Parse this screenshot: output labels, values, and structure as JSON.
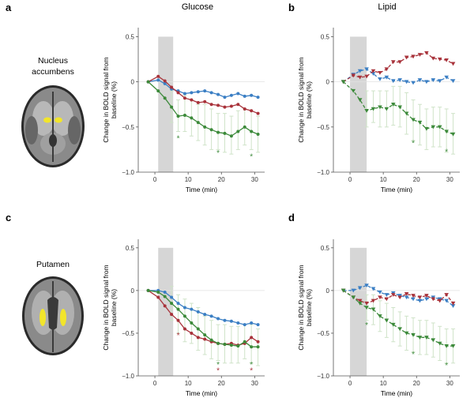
{
  "column_titles": {
    "left": "Glucose",
    "right": "Lipid"
  },
  "row_labels": {
    "top": [
      "Nucleus",
      "accumbens"
    ],
    "bottom": [
      "Putamen"
    ]
  },
  "colors": {
    "blue": "#3b7fc4",
    "red": "#a8323a",
    "green": "#3c8a3a",
    "errorbar": "#cfe3c8",
    "shade": "#d6d6d6",
    "brain_highlight": "#f2e52b"
  },
  "chart_data": [
    {
      "panel": "a",
      "type": "line",
      "line_style": "solid",
      "marker": "circle",
      "xlabel": "Time (min)",
      "ylabel": [
        "Change in BOLD signal from",
        "baseline (%)"
      ],
      "xlim": [
        -5,
        33
      ],
      "ylim": [
        -1.0,
        0.6
      ],
      "xticks": [
        0,
        10,
        20,
        30
      ],
      "yticks": [
        0.5,
        0,
        -0.5,
        -1.0
      ],
      "ytick_labels": [
        "0.5",
        "0",
        "−0.5",
        "−1.0"
      ],
      "shade_x": [
        1,
        5.5
      ],
      "series": [
        {
          "color": "blue",
          "x": [
            -2,
            1,
            3,
            5,
            7,
            9,
            11,
            13,
            15,
            17,
            19,
            21,
            23,
            25,
            27,
            29,
            31
          ],
          "y": [
            0,
            0.02,
            -0.02,
            -0.08,
            -0.1,
            -0.13,
            -0.12,
            -0.11,
            -0.1,
            -0.12,
            -0.14,
            -0.17,
            -0.15,
            -0.13,
            -0.16,
            -0.15,
            -0.17
          ]
        },
        {
          "color": "red",
          "x": [
            -2,
            1,
            3,
            5,
            7,
            9,
            11,
            13,
            15,
            17,
            19,
            21,
            23,
            25,
            27,
            29,
            31
          ],
          "y": [
            0,
            0.06,
            0.01,
            -0.06,
            -0.12,
            -0.18,
            -0.2,
            -0.23,
            -0.22,
            -0.25,
            -0.26,
            -0.28,
            -0.27,
            -0.25,
            -0.3,
            -0.32,
            -0.35
          ]
        },
        {
          "color": "green",
          "x": [
            -2,
            1,
            3,
            5,
            7,
            9,
            11,
            13,
            15,
            17,
            19,
            21,
            23,
            25,
            27,
            29,
            31
          ],
          "y": [
            0,
            -0.1,
            -0.18,
            -0.28,
            -0.38,
            -0.37,
            -0.4,
            -0.45,
            -0.5,
            -0.53,
            -0.56,
            -0.57,
            -0.6,
            -0.55,
            -0.5,
            -0.55,
            -0.58
          ]
        }
      ],
      "errorbars": [
        {
          "x": 5,
          "low": -0.45,
          "high": -0.1
        },
        {
          "x": 7,
          "low": -0.55,
          "high": -0.2
        },
        {
          "x": 9,
          "low": -0.55,
          "high": -0.15
        },
        {
          "x": 11,
          "low": -0.6,
          "high": -0.2
        },
        {
          "x": 13,
          "low": -0.65,
          "high": -0.25
        },
        {
          "x": 15,
          "low": -0.7,
          "high": -0.25
        },
        {
          "x": 17,
          "low": -0.75,
          "high": -0.3
        },
        {
          "x": 19,
          "low": -0.75,
          "high": -0.35
        },
        {
          "x": 21,
          "low": -0.78,
          "high": -0.35
        },
        {
          "x": 23,
          "low": -0.8,
          "high": -0.38
        },
        {
          "x": 25,
          "low": -0.75,
          "high": -0.32
        },
        {
          "x": 27,
          "low": -0.7,
          "high": -0.3
        },
        {
          "x": 29,
          "low": -0.75,
          "high": -0.32
        },
        {
          "x": 31,
          "low": -0.78,
          "high": -0.38
        }
      ],
      "significance": [
        {
          "x": 7,
          "y": -0.62,
          "color": "green",
          "text": "*"
        },
        {
          "x": 19,
          "y": -0.78,
          "color": "green",
          "text": "*"
        },
        {
          "x": 29,
          "y": -0.82,
          "color": "green",
          "text": "*"
        }
      ]
    },
    {
      "panel": "b",
      "type": "line",
      "line_style": "dashed",
      "marker": "triangle-down",
      "xlabel": "Time (min)",
      "ylabel": [
        "Change in BOLD signal from",
        "baseline (%)"
      ],
      "xlim": [
        -5,
        33
      ],
      "ylim": [
        -1.0,
        0.6
      ],
      "xticks": [
        0,
        10,
        20,
        30
      ],
      "yticks": [
        0.5,
        0,
        -0.5,
        -1.0
      ],
      "ytick_labels": [
        "0.5",
        "0",
        "−0.5",
        "−1.0"
      ],
      "shade_x": [
        0,
        5
      ],
      "series": [
        {
          "color": "blue",
          "x": [
            -2,
            1,
            3,
            5,
            7,
            9,
            11,
            13,
            15,
            17,
            19,
            21,
            23,
            25,
            27,
            29,
            31
          ],
          "y": [
            0,
            0.08,
            0.12,
            0.14,
            0.09,
            0.03,
            0.05,
            0.01,
            0.02,
            0.0,
            -0.01,
            0.02,
            0.0,
            0.02,
            0.01,
            0.05,
            0.01
          ]
        },
        {
          "color": "red",
          "x": [
            -2,
            1,
            3,
            5,
            7,
            9,
            11,
            13,
            15,
            17,
            19,
            21,
            23,
            25,
            27,
            29,
            31
          ],
          "y": [
            0,
            0.07,
            0.05,
            0.06,
            0.12,
            0.1,
            0.14,
            0.22,
            0.22,
            0.27,
            0.28,
            0.3,
            0.32,
            0.26,
            0.25,
            0.24,
            0.2
          ]
        },
        {
          "color": "green",
          "x": [
            -2,
            1,
            3,
            5,
            7,
            9,
            11,
            13,
            15,
            17,
            19,
            21,
            23,
            25,
            27,
            29,
            31
          ],
          "y": [
            0,
            -0.1,
            -0.2,
            -0.32,
            -0.3,
            -0.28,
            -0.3,
            -0.25,
            -0.28,
            -0.35,
            -0.42,
            -0.45,
            -0.52,
            -0.5,
            -0.5,
            -0.55,
            -0.58
          ]
        }
      ],
      "errorbars": [
        {
          "x": 5,
          "low": -0.5,
          "high": -0.1
        },
        {
          "x": 7,
          "low": -0.45,
          "high": -0.1
        },
        {
          "x": 9,
          "low": -0.5,
          "high": -0.1
        },
        {
          "x": 11,
          "low": -0.5,
          "high": -0.1
        },
        {
          "x": 13,
          "low": -0.48,
          "high": -0.05
        },
        {
          "x": 15,
          "low": -0.5,
          "high": -0.05
        },
        {
          "x": 17,
          "low": -0.58,
          "high": -0.12
        },
        {
          "x": 19,
          "low": -0.65,
          "high": -0.2
        },
        {
          "x": 21,
          "low": -0.7,
          "high": -0.25
        },
        {
          "x": 23,
          "low": -0.75,
          "high": -0.3
        },
        {
          "x": 25,
          "low": -0.72,
          "high": -0.28
        },
        {
          "x": 27,
          "low": -0.72,
          "high": -0.28
        },
        {
          "x": 29,
          "low": -0.78,
          "high": -0.3
        },
        {
          "x": 31,
          "low": -0.8,
          "high": -0.35
        }
      ],
      "significance": [
        {
          "x": 19,
          "y": -0.67,
          "color": "green",
          "text": "*"
        },
        {
          "x": 29,
          "y": -0.77,
          "color": "green",
          "text": "*"
        }
      ]
    },
    {
      "panel": "c",
      "type": "line",
      "line_style": "solid",
      "marker": "circle",
      "xlabel": "Time (min)",
      "ylabel": [
        "Change in BOLD signal from",
        "baseline (%)"
      ],
      "xlim": [
        -5,
        33
      ],
      "ylim": [
        -1.0,
        0.6
      ],
      "xticks": [
        0,
        10,
        20,
        30
      ],
      "yticks": [
        0.5,
        0,
        -0.5,
        -1.0
      ],
      "ytick_labels": [
        "0.5",
        "0",
        "−0.5",
        "−1.0"
      ],
      "shade_x": [
        1,
        5.5
      ],
      "series": [
        {
          "color": "blue",
          "x": [
            -2,
            1,
            3,
            5,
            7,
            9,
            11,
            13,
            15,
            17,
            19,
            21,
            23,
            25,
            27,
            29,
            31
          ],
          "y": [
            0,
            0.0,
            -0.02,
            -0.08,
            -0.15,
            -0.2,
            -0.22,
            -0.25,
            -0.28,
            -0.3,
            -0.33,
            -0.35,
            -0.36,
            -0.38,
            -0.4,
            -0.38,
            -0.4
          ]
        },
        {
          "color": "red",
          "x": [
            -2,
            1,
            3,
            5,
            7,
            9,
            11,
            13,
            15,
            17,
            19,
            21,
            23,
            25,
            27,
            29,
            31
          ],
          "y": [
            0,
            -0.08,
            -0.18,
            -0.28,
            -0.35,
            -0.45,
            -0.5,
            -0.55,
            -0.57,
            -0.6,
            -0.62,
            -0.63,
            -0.62,
            -0.64,
            -0.62,
            -0.55,
            -0.6
          ]
        },
        {
          "color": "green",
          "x": [
            -2,
            1,
            3,
            5,
            7,
            9,
            11,
            13,
            15,
            17,
            19,
            21,
            23,
            25,
            27,
            29,
            31
          ],
          "y": [
            0,
            -0.02,
            -0.07,
            -0.15,
            -0.22,
            -0.3,
            -0.38,
            -0.45,
            -0.52,
            -0.58,
            -0.62,
            -0.63,
            -0.64,
            -0.65,
            -0.6,
            -0.66,
            -0.66
          ]
        }
      ],
      "errorbars": [
        {
          "x": 5,
          "low": -0.35,
          "high": 0.05
        },
        {
          "x": 7,
          "low": -0.5,
          "high": -0.05
        },
        {
          "x": 9,
          "low": -0.6,
          "high": -0.1
        },
        {
          "x": 11,
          "low": -0.62,
          "high": -0.15
        },
        {
          "x": 13,
          "low": -0.7,
          "high": -0.2
        },
        {
          "x": 15,
          "low": -0.75,
          "high": -0.3
        },
        {
          "x": 17,
          "low": -0.8,
          "high": -0.35
        },
        {
          "x": 19,
          "low": -0.82,
          "high": -0.4
        },
        {
          "x": 21,
          "low": -0.85,
          "high": -0.4
        },
        {
          "x": 23,
          "low": -0.85,
          "high": -0.42
        },
        {
          "x": 25,
          "low": -0.85,
          "high": -0.42
        },
        {
          "x": 27,
          "low": -0.8,
          "high": -0.4
        },
        {
          "x": 29,
          "low": -0.85,
          "high": -0.4
        },
        {
          "x": 31,
          "low": -0.88,
          "high": -0.45
        }
      ],
      "significance": [
        {
          "x": 7,
          "y": -0.52,
          "color": "red",
          "text": "*"
        },
        {
          "x": 19,
          "y": -0.86,
          "color": "green",
          "text": "*"
        },
        {
          "x": 19,
          "y": -0.93,
          "color": "red",
          "text": "*"
        },
        {
          "x": 29,
          "y": -0.86,
          "color": "green",
          "text": "*"
        },
        {
          "x": 29,
          "y": -0.93,
          "color": "red",
          "text": "*"
        }
      ]
    },
    {
      "panel": "d",
      "type": "line",
      "line_style": "dashed",
      "marker": "triangle-down",
      "xlabel": "Time (min)",
      "ylabel": [
        "Change in BOLD signal from",
        "baseline (%)"
      ],
      "xlim": [
        -5,
        33
      ],
      "ylim": [
        -1.0,
        0.6
      ],
      "xticks": [
        0,
        10,
        20,
        30
      ],
      "yticks": [
        0.5,
        0,
        -0.5,
        -1.0
      ],
      "ytick_labels": [
        "0.5",
        "0",
        "−0.5",
        "−1.0"
      ],
      "shade_x": [
        0,
        5
      ],
      "series": [
        {
          "color": "blue",
          "x": [
            -2,
            1,
            3,
            5,
            7,
            9,
            11,
            13,
            15,
            17,
            19,
            21,
            23,
            25,
            27,
            29,
            31
          ],
          "y": [
            0,
            0.0,
            0.03,
            0.06,
            0.02,
            -0.02,
            -0.05,
            -0.03,
            -0.06,
            -0.08,
            -0.1,
            -0.12,
            -0.1,
            -0.08,
            -0.1,
            -0.12,
            -0.18
          ]
        },
        {
          "color": "red",
          "x": [
            -2,
            1,
            3,
            5,
            7,
            9,
            11,
            13,
            15,
            17,
            19,
            21,
            23,
            25,
            27,
            29,
            31
          ],
          "y": [
            0,
            -0.08,
            -0.12,
            -0.15,
            -0.12,
            -0.08,
            -0.1,
            -0.05,
            -0.08,
            -0.04,
            -0.06,
            -0.08,
            -0.06,
            -0.1,
            -0.12,
            -0.05,
            -0.15
          ]
        },
        {
          "color": "green",
          "x": [
            -2,
            1,
            3,
            5,
            7,
            9,
            11,
            13,
            15,
            17,
            19,
            21,
            23,
            25,
            27,
            29,
            31
          ],
          "y": [
            0,
            -0.08,
            -0.15,
            -0.2,
            -0.22,
            -0.3,
            -0.35,
            -0.4,
            -0.45,
            -0.5,
            -0.52,
            -0.55,
            -0.55,
            -0.58,
            -0.62,
            -0.65,
            -0.65
          ]
        }
      ],
      "errorbars": [
        {
          "x": 5,
          "low": -0.35,
          "high": -0.05
        },
        {
          "x": 7,
          "low": -0.4,
          "high": -0.05
        },
        {
          "x": 9,
          "low": -0.48,
          "high": -0.12
        },
        {
          "x": 11,
          "low": -0.55,
          "high": -0.15
        },
        {
          "x": 13,
          "low": -0.6,
          "high": -0.2
        },
        {
          "x": 15,
          "low": -0.65,
          "high": -0.25
        },
        {
          "x": 17,
          "low": -0.7,
          "high": -0.3
        },
        {
          "x": 19,
          "low": -0.72,
          "high": -0.32
        },
        {
          "x": 21,
          "low": -0.75,
          "high": -0.35
        },
        {
          "x": 23,
          "low": -0.75,
          "high": -0.35
        },
        {
          "x": 25,
          "low": -0.78,
          "high": -0.38
        },
        {
          "x": 27,
          "low": -0.82,
          "high": -0.42
        },
        {
          "x": 29,
          "low": -0.85,
          "high": -0.45
        },
        {
          "x": 31,
          "low": -0.85,
          "high": -0.45
        }
      ],
      "significance": [
        {
          "x": 5,
          "y": -0.4,
          "color": "green",
          "text": "*"
        },
        {
          "x": 19,
          "y": -0.74,
          "color": "green",
          "text": "*"
        },
        {
          "x": 29,
          "y": -0.87,
          "color": "green",
          "text": "*"
        }
      ]
    }
  ]
}
